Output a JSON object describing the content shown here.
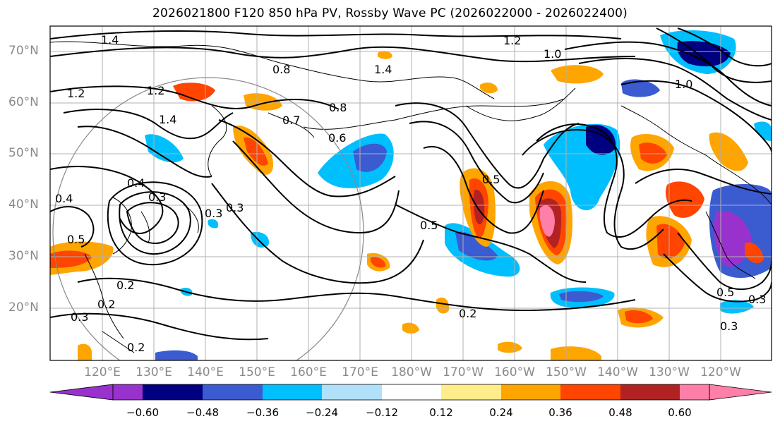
{
  "title": "2026021800 F120 850 hPa PV, Rossby Wave PC (2026022000 - 2026022400)",
  "map": {
    "lat_labels": [
      "70°N",
      "60°N",
      "50°N",
      "40°N",
      "30°N",
      "20°N"
    ],
    "lon_labels": [
      "120°E",
      "130°E",
      "140°E",
      "150°E",
      "160°E",
      "170°E",
      "180°W",
      "170°W",
      "160°W",
      "150°W",
      "140°W",
      "130°W",
      "120°W"
    ],
    "contour_labels": [
      "1.4",
      "1.2",
      "1.0",
      "1.2",
      "1.4",
      "1.2",
      "1.4",
      "0.8",
      "0.8",
      "0.7",
      "0.6",
      "0.4",
      "0.4",
      "0.3",
      "0.3",
      "0.3",
      "0.5",
      "0.2",
      "0.2",
      "0.3",
      "0.2",
      "0.5",
      "0.5",
      "0.2",
      "1.0",
      "0.5",
      "0.3",
      "0.3"
    ],
    "fill_colors": {
      "purple": "#9932cc",
      "navy": "#000080",
      "blue": "#3b5bd1",
      "deepskyblue": "#00bfff",
      "lightblue": "#b0e0fa",
      "yellow": "#ffec8b",
      "orange": "#ffa500",
      "redorange": "#ff4500",
      "darkred": "#b22222",
      "pink": "#ff7fa8"
    }
  },
  "colorbar": {
    "ticks": [
      "−0.60",
      "−0.48",
      "−0.36",
      "−0.24",
      "−0.12",
      "0.12",
      "0.24",
      "0.36",
      "0.48",
      "0.60"
    ],
    "colors": [
      "#9932cc",
      "#000080",
      "#3b5bd1",
      "#00bfff",
      "#b0e0fa",
      "#ffffff",
      "#ffec8b",
      "#ffa500",
      "#ff4500",
      "#b22222",
      "#ff7fa8"
    ]
  }
}
